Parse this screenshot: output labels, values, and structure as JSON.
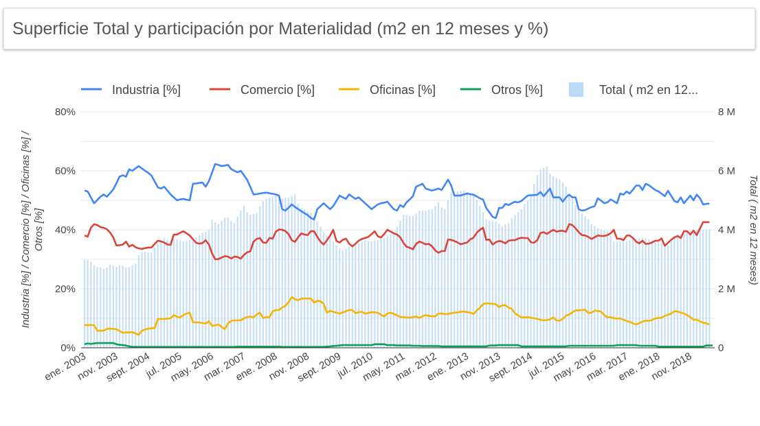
{
  "header": {
    "title": "Superficie Total y participación por Materialidad (m2 en 12 meses y %)"
  },
  "chart_data": {
    "type": "line+bar",
    "title": "Superficie Total y participación por Materialidad (m2 en 12 meses y %)",
    "legend_position": "top",
    "grid": true,
    "x_tick_labels": [
      "ene. 2003",
      "nov. 2003",
      "sept. 2004",
      "jul. 2005",
      "may. 2006",
      "mar. 2007",
      "ene. 2008",
      "nov. 2008",
      "sept. 2009",
      "jul. 2010",
      "may. 2011",
      "mar. 2012",
      "ene. 2013",
      "nov. 2013",
      "sept. 2014",
      "jul. 2015",
      "may. 2016",
      "mar. 2017",
      "ene. 2018",
      "nov. 2018"
    ],
    "x_tick_every": 10,
    "y_left": {
      "label": "Industria [%] / Comercio [%] / Oficinas [%] / Otros [%]",
      "range": [
        0,
        80
      ],
      "ticks": [
        "0%",
        "20%",
        "40%",
        "60%",
        "80%"
      ]
    },
    "y_right": {
      "label": "Total ( m2 en 12 meses)",
      "range": [
        0,
        8
      ],
      "unit": "M",
      "ticks": [
        "0",
        "2 M",
        "4 M",
        "6 M",
        "8 M"
      ]
    },
    "series": [
      {
        "name": "Industria [%]",
        "kind": "line",
        "axis": "left",
        "color": "#4285f4",
        "values": [
          53.3,
          53,
          51,
          49,
          50.1,
          51.2,
          52,
          51.2,
          52.4,
          53.7,
          55.8,
          58,
          58.5,
          58,
          60.5,
          60,
          60.8,
          61.6,
          60.8,
          60,
          59.3,
          58.4,
          56.4,
          54.4,
          54,
          54.6,
          53.3,
          52,
          51,
          50,
          50.3,
          50.5,
          50.2,
          50,
          55.6,
          55.7,
          55.9,
          56,
          54.6,
          56.5,
          59.4,
          62.3,
          62,
          61.6,
          61.8,
          62,
          60.6,
          60,
          59.5,
          60,
          58.5,
          57,
          54.5,
          52,
          52.1,
          52.3,
          52.5,
          52.6,
          52.4,
          52.2,
          52,
          51.6,
          47,
          46.5,
          47.5,
          48.6,
          47.8,
          47,
          46.3,
          45.6,
          45,
          44,
          43.5,
          47,
          48,
          49,
          48,
          47,
          48,
          49.8,
          51.6,
          51,
          50.5,
          52,
          51.2,
          50.5,
          51,
          50,
          49,
          48,
          47,
          47.8,
          48.6,
          49,
          49.2,
          49.5,
          48.2,
          47,
          46.5,
          48.4,
          47.7,
          49.3,
          50.3,
          51.4,
          54.6,
          55.1,
          55.6,
          54,
          53.6,
          53.3,
          53.6,
          54,
          53.5,
          55.2,
          57,
          55,
          51.6,
          51.6,
          51.6,
          52,
          52.3,
          52.1,
          51.9,
          51.3,
          50.7,
          50.2,
          47.4,
          45.9,
          44.4,
          44,
          47.4,
          47.4,
          48.8,
          48.4,
          49,
          49.5,
          49.3,
          49.8,
          50.7,
          51.6,
          51.7,
          51.8,
          51.9,
          52.8,
          51.4,
          52.7,
          54,
          51,
          51,
          51,
          49.5,
          51,
          51.9,
          51,
          51,
          47,
          46.5,
          46.7,
          47.2,
          47.7,
          48,
          50.7,
          49.9,
          49,
          49.3,
          50.3,
          49.7,
          49,
          52.3,
          51.9,
          53,
          52.3,
          53.6,
          55,
          55,
          53.5,
          55.6,
          55.1,
          54.3,
          53.5,
          53,
          52.2,
          51.4,
          53.2,
          51.5,
          49.8,
          49.3,
          51,
          49,
          50.3,
          51.6,
          50,
          51.9,
          50.8,
          48.6,
          48.8,
          48.9
        ]
      },
      {
        "name": "Comercio [%]",
        "kind": "line",
        "axis": "left",
        "color": "#db4437",
        "values": [
          38.1,
          37.7,
          40.7,
          41.9,
          41.6,
          40.9,
          40.7,
          40.2,
          39.1,
          37.5,
          34.7,
          34.8,
          35,
          36,
          34.3,
          34.9,
          34.1,
          33.7,
          33.5,
          33.8,
          34,
          34,
          35.2,
          36.3,
          36.1,
          35.7,
          35,
          34.9,
          38.4,
          38.4,
          39,
          39.5,
          38.8,
          38.1,
          36.8,
          35.6,
          35.3,
          35.5,
          36.5,
          35,
          32,
          30,
          30.1,
          30.6,
          31.1,
          30.9,
          30.3,
          30.9,
          30.8,
          30.2,
          31.5,
          32.4,
          32.7,
          36,
          36.9,
          37.2,
          35.7,
          35.6,
          37.2,
          37,
          39.4,
          40.1,
          40,
          39.6,
          38.5,
          36.5,
          35.9,
          37.5,
          38.8,
          38.4,
          38.2,
          39.5,
          39.5,
          37.6,
          36,
          35,
          36.4,
          38,
          40,
          36.2,
          35.7,
          36.6,
          37,
          35.3,
          34.4,
          35.3,
          36.3,
          36.9,
          37.2,
          37.6,
          38.5,
          39.5,
          37.8,
          37.4,
          38.6,
          40,
          39.4,
          38.8,
          38.4,
          37.5,
          35.6,
          34.3,
          33.9,
          33.4,
          35.2,
          36,
          35.6,
          35.1,
          35.2,
          34.4,
          33,
          32.2,
          32.8,
          32.8,
          36.7,
          36.6,
          36.2,
          35.7,
          35.1,
          35.4,
          35.7,
          36.8,
          37.3,
          39,
          40,
          40.7,
          36.6,
          36.7,
          35,
          35.8,
          36.2,
          36,
          35.4,
          36.3,
          36.5,
          36.5,
          37,
          37.3,
          37.2,
          37.2,
          35.8,
          35.6,
          36.5,
          38.9,
          39.2,
          38.6,
          39.3,
          40,
          39.4,
          39.6,
          39.7,
          39.3,
          41.9,
          41.6,
          40.5,
          39.2,
          38.2,
          38.1,
          37.6,
          36.9,
          37.5,
          38.1,
          37.9,
          37.9,
          38.2,
          38.8,
          40,
          37,
          37,
          36.5,
          38,
          38.1,
          37.2,
          36,
          35.4,
          36.3,
          35.2,
          35.3,
          35.7,
          36.3,
          36.3,
          37.1,
          34.6,
          35.6,
          36.6,
          37.4,
          37.9,
          37.2,
          39.5,
          39.5,
          38.4,
          39.7,
          38.2,
          40.4,
          42.6,
          42.6,
          42.6
        ]
      },
      {
        "name": "Oficinas [%]",
        "kind": "line",
        "axis": "left",
        "color": "#f4b400",
        "values": [
          7.7,
          7.7,
          7.7,
          7.7,
          5.8,
          5.8,
          5.8,
          6.4,
          6.5,
          6.4,
          6.3,
          5.7,
          5.1,
          5.2,
          5.2,
          5.3,
          4.9,
          4.4,
          5.8,
          6.2,
          6.5,
          6.6,
          6.7,
          9.8,
          9.8,
          9.8,
          9.9,
          10,
          11.1,
          10.5,
          10.3,
          11.1,
          11.6,
          11.9,
          8.6,
          8.6,
          8.6,
          8.4,
          8.2,
          9,
          7.4,
          7.6,
          7.9,
          7.1,
          6.3,
          8.3,
          9.1,
          9.3,
          9.3,
          9.3,
          10,
          10.4,
          10.6,
          10.3,
          11.3,
          11.9,
          10.1,
          10.4,
          10.3,
          12.4,
          12.8,
          12.8,
          13.7,
          14.2,
          15.5,
          17.2,
          16.5,
          16.1,
          16.7,
          16.7,
          16.7,
          16.7,
          15.3,
          15.9,
          15.8,
          14.9,
          11.9,
          12.5,
          12.2,
          11.9,
          11.6,
          12,
          12.4,
          12.8,
          12.8,
          11.7,
          12.1,
          12.2,
          11.6,
          11.8,
          12.1,
          12,
          11.9,
          11.2,
          10.6,
          11.6,
          11.9,
          11.5,
          11,
          10.5,
          10.4,
          10.3,
          10.2,
          10.4,
          10.6,
          10.1,
          10.7,
          11.1,
          10.8,
          10.7,
          10.7,
          11.6,
          11.6,
          11.4,
          11.5,
          11.7,
          11.9,
          12,
          12.2,
          12.3,
          12.1,
          11.9,
          11.5,
          12.6,
          13.6,
          14.8,
          15.1,
          15,
          14.9,
          14.8,
          13.8,
          14.4,
          14.4,
          13.6,
          13.2,
          11.7,
          11,
          10.3,
          10.3,
          10.4,
          10.2,
          10,
          9.8,
          9.5,
          9.3,
          9.4,
          9.6,
          10.3,
          9.3,
          9.2,
          9.8,
          10.9,
          11.3,
          12,
          12.7,
          12.7,
          12.8,
          12.9,
          11.8,
          11.9,
          12.6,
          12.5,
          12.3,
          11.1,
          10.3,
          10.4,
          10,
          9.9,
          10,
          9.5,
          9.1,
          8.8,
          8.3,
          7.9,
          8.4,
          8.9,
          9.2,
          9.1,
          9.4,
          10,
          10.1,
          10.2,
          10.8,
          11.2,
          11.6,
          12.4,
          12.3,
          11.9,
          11.6,
          11.1,
          10.4,
          9.5,
          9.5,
          9,
          8.5,
          8.3,
          7.9
        ]
      },
      {
        "name": "Otros [%]",
        "kind": "line",
        "axis": "left",
        "color": "#0f9d58",
        "values": [
          1.2,
          1.5,
          1.3,
          1.5,
          1.6,
          1.6,
          1.6,
          1.6,
          1.6,
          1.6,
          1.2,
          1,
          0.9,
          0.8,
          0.5,
          0.3,
          0.3,
          0.3,
          0.3,
          0.3,
          0.3,
          0.3,
          0.3,
          0.3,
          0.3,
          0.3,
          0.3,
          0.3,
          0.3,
          0.3,
          0.3,
          0.3,
          0.3,
          0.3,
          0.3,
          0.3,
          0.3,
          0.3,
          0.3,
          0.3,
          0.3,
          0.3,
          0.3,
          0.3,
          0.3,
          0.3,
          0.3,
          0.3,
          0.4,
          0.4,
          0.4,
          0.4,
          0.4,
          0.4,
          0.4,
          0.4,
          0.4,
          0.4,
          0.4,
          0.4,
          0.4,
          0.4,
          0.3,
          0.3,
          0.3,
          0.3,
          0.3,
          0.3,
          0.3,
          0.3,
          0.3,
          0.3,
          0.3,
          0.3,
          0.3,
          0.3,
          0.4,
          0.5,
          0.6,
          0.7,
          0.8,
          0.9,
          0.9,
          0.9,
          0.9,
          0.9,
          0.9,
          0.9,
          0.9,
          0.9,
          0.9,
          1.2,
          1.2,
          1.2,
          1.2,
          0.9,
          0.9,
          0.9,
          0.8,
          0.8,
          0.8,
          0.8,
          0.8,
          0.7,
          0.7,
          0.7,
          0.6,
          0.6,
          0.6,
          0.6,
          0.6,
          0.6,
          0.5,
          0.5,
          0.5,
          0.5,
          0.5,
          0.5,
          0.5,
          0.5,
          0.5,
          0.5,
          0.5,
          0.5,
          0.5,
          0.5,
          0.5,
          0.8,
          0.8,
          0.8,
          0.9,
          0.9,
          0.9,
          0.9,
          0.9,
          0.9,
          0.9,
          0.5,
          0.5,
          0.5,
          0.5,
          0.5,
          0.5,
          0.5,
          0.5,
          0.5,
          0.5,
          0.5,
          0.5,
          0.5,
          0.5,
          0.5,
          0.7,
          0.7,
          0.7,
          0.7,
          0.7,
          0.7,
          0.7,
          0.7,
          0.7,
          0.7,
          0.7,
          0.7,
          0.7,
          0.7,
          0.7,
          0.9,
          0.9,
          0.9,
          0.9,
          0.9,
          0.9,
          0.9,
          0.7,
          0.7,
          0.7,
          0.7,
          0.7,
          0.7,
          0.4,
          0.4,
          0.4,
          0.4,
          0.4,
          0.4,
          0.4,
          0.4,
          0.4,
          0.4,
          0.4,
          0.4,
          0.4,
          0.4,
          0.4,
          0.8,
          0.8,
          0.8
        ]
      },
      {
        "name": "Total ( m2 en 12 meses)",
        "legend_label": "Total ( m2 en 12...",
        "kind": "bar",
        "axis": "right",
        "unit": "M",
        "color": "#c6dff6",
        "values": [
          2.98,
          2.98,
          2.92,
          2.8,
          2.74,
          2.72,
          2.67,
          2.72,
          2.82,
          2.8,
          2.74,
          2.8,
          2.78,
          2.72,
          2.74,
          2.79,
          2.86,
          3.14,
          3.24,
          3.26,
          3.23,
          3.23,
          3.4,
          3.55,
          3.64,
          3.72,
          3.68,
          3.65,
          3.7,
          3.68,
          3.64,
          3.6,
          3.62,
          3.65,
          3.72,
          3.75,
          3.82,
          3.9,
          3.94,
          4,
          4.35,
          4.25,
          4.19,
          4.3,
          4.4,
          4.42,
          4.3,
          4.23,
          4.45,
          4.65,
          4.81,
          4.6,
          4.51,
          4.55,
          4.58,
          4.8,
          4.98,
          5.05,
          5.09,
          5.12,
          5.16,
          5.1,
          5.05,
          5.1,
          5.09,
          5.15,
          5.2,
          4.88,
          4.75,
          4.7,
          4.62,
          4.58,
          4.45,
          4.3,
          4.1,
          3.93,
          3.8,
          3.72,
          3.6,
          3.47,
          3.38,
          3.3,
          3.36,
          3.42,
          3.45,
          3.49,
          3.55,
          3.6,
          3.65,
          3.62,
          3.6,
          3.62,
          3.65,
          3.7,
          3.72,
          3.78,
          3.85,
          3.88,
          4.1,
          4.3,
          4.51,
          4.5,
          4.48,
          4.47,
          4.55,
          4.65,
          4.65,
          4.65,
          4.68,
          4.7,
          4.8,
          4.93,
          4.75,
          4.7,
          5,
          5.28,
          5.3,
          5.3,
          5.32,
          5.33,
          5.28,
          5.22,
          5.18,
          5,
          4.81,
          4.6,
          4.35,
          4.32,
          4.3,
          4.28,
          4.2,
          4.12,
          4.18,
          4.23,
          4.4,
          4.51,
          4.6,
          4.7,
          4.88,
          4.98,
          5.2,
          5.56,
          5.85,
          6.05,
          6.1,
          6.14,
          5.9,
          5.81,
          5.75,
          5.7,
          5.6,
          5.47,
          5.2,
          5.05,
          4.85,
          4.7,
          4.55,
          4.47,
          4.35,
          4.19,
          4.12,
          4.05,
          4,
          3.97,
          3.93,
          3.8,
          3.6,
          3.6,
          3.6,
          3.6,
          3.62,
          3.65,
          3.68,
          3.7,
          3.72,
          3.72,
          3.72,
          3.68,
          3.65,
          3.62,
          3.58,
          3.55,
          3.5,
          3.47,
          3.6,
          3.81,
          3.82,
          3.84,
          3.88,
          3.95,
          3.97,
          4,
          4,
          4,
          4,
          4,
          4
        ]
      }
    ]
  }
}
